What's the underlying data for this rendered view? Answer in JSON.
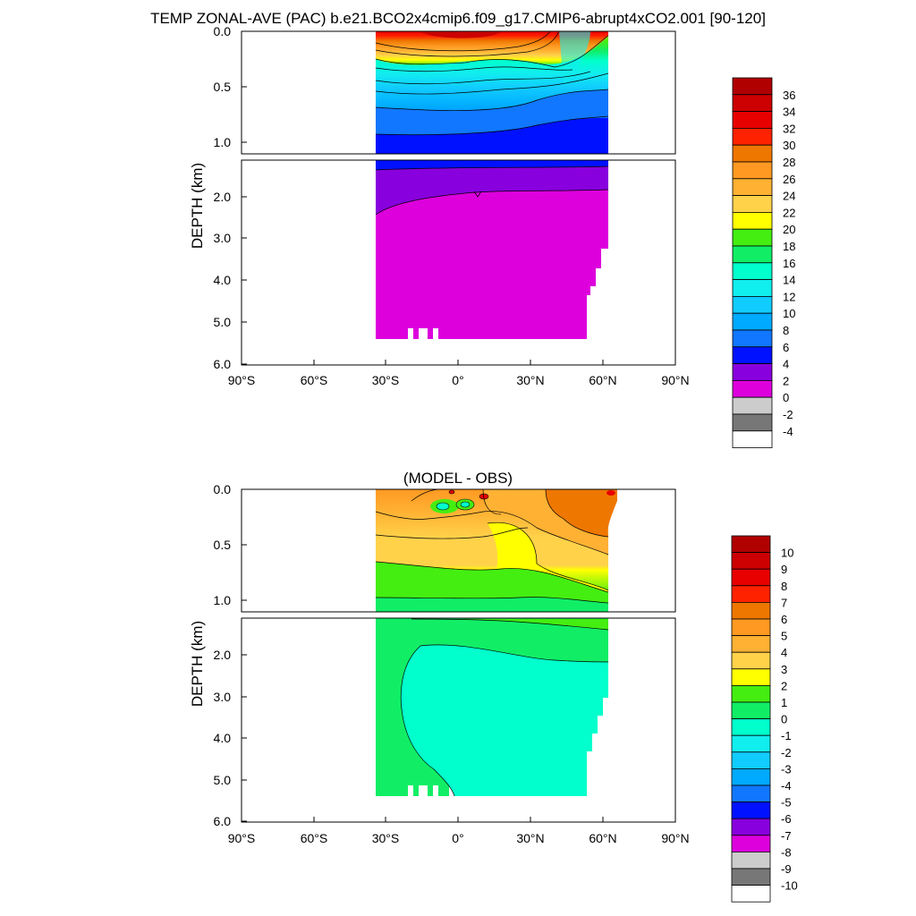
{
  "figure_title": "TEMP ZONAL-AVE (PAC) b.e21.BCO2x4cmip6.f09_g17.CMIP6-abrupt4xCO2.001 [90-120]",
  "chart_data": [
    {
      "type": "heatmap",
      "panel": "top",
      "title": "",
      "xlabel": "",
      "ylabel": "DEPTH (km)",
      "x_ticks": [
        "90°S",
        "60°S",
        "30°S",
        "0°",
        "30°N",
        "60°N",
        "90°N"
      ],
      "x_range": [
        -90,
        90
      ],
      "y_ticks_upper": [
        "0.0",
        "0.5",
        "1.0"
      ],
      "y_ticks_lower": [
        "2.0",
        "3.0",
        "4.0",
        "5.0",
        "6.0"
      ],
      "y_range": [
        0,
        6
      ],
      "y_break_km": 1.1,
      "data_extent_lat": [
        -34,
        62
      ],
      "colorbar": {
        "labels": [
          "36",
          "34",
          "32",
          "30",
          "28",
          "26",
          "24",
          "22",
          "20",
          "18",
          "16",
          "14",
          "12",
          "10",
          "8",
          "6",
          "4",
          "2",
          "0",
          "-2",
          "-4"
        ],
        "colors": [
          "#b00000",
          "#cc0000",
          "#e80000",
          "#ff2200",
          "#ee7700",
          "#ff9922",
          "#ffb133",
          "#ffd24a",
          "#ffff00",
          "#44ee11",
          "#11ee66",
          "#00ffcc",
          "#11eeee",
          "#11ccff",
          "#00aaff",
          "#1177ff",
          "#0011ff",
          "#8800dd",
          "#dd00dd",
          "#cccccc",
          "#777777",
          "#ffffff"
        ]
      }
    },
    {
      "type": "heatmap",
      "panel": "bottom",
      "title": "(MODEL - OBS)",
      "xlabel": "",
      "ylabel": "DEPTH (km)",
      "x_ticks": [
        "90°S",
        "60°S",
        "30°S",
        "0°",
        "30°N",
        "60°N",
        "90°N"
      ],
      "x_range": [
        -90,
        90
      ],
      "y_ticks_upper": [
        "0.0",
        "0.5",
        "1.0"
      ],
      "y_ticks_lower": [
        "2.0",
        "3.0",
        "4.0",
        "5.0",
        "6.0"
      ],
      "y_range": [
        0,
        6
      ],
      "y_break_km": 1.1,
      "data_extent_lat": [
        -34,
        62
      ],
      "colorbar": {
        "labels": [
          "10",
          "9",
          "8",
          "7",
          "6",
          "5",
          "4",
          "3",
          "2",
          "1",
          "0",
          "-1",
          "-2",
          "-3",
          "-4",
          "-5",
          "-6",
          "-7",
          "-8",
          "-9",
          "-10"
        ],
        "colors": [
          "#b00000",
          "#cc0000",
          "#e80000",
          "#ff2200",
          "#ee7700",
          "#ff9922",
          "#ffb133",
          "#ffd24a",
          "#ffff00",
          "#44ee11",
          "#11ee66",
          "#00ffcc",
          "#11eeee",
          "#11ccff",
          "#00aaff",
          "#1177ff",
          "#0011ff",
          "#8800dd",
          "#dd00dd",
          "#cccccc",
          "#777777",
          "#ffffff"
        ]
      }
    }
  ]
}
